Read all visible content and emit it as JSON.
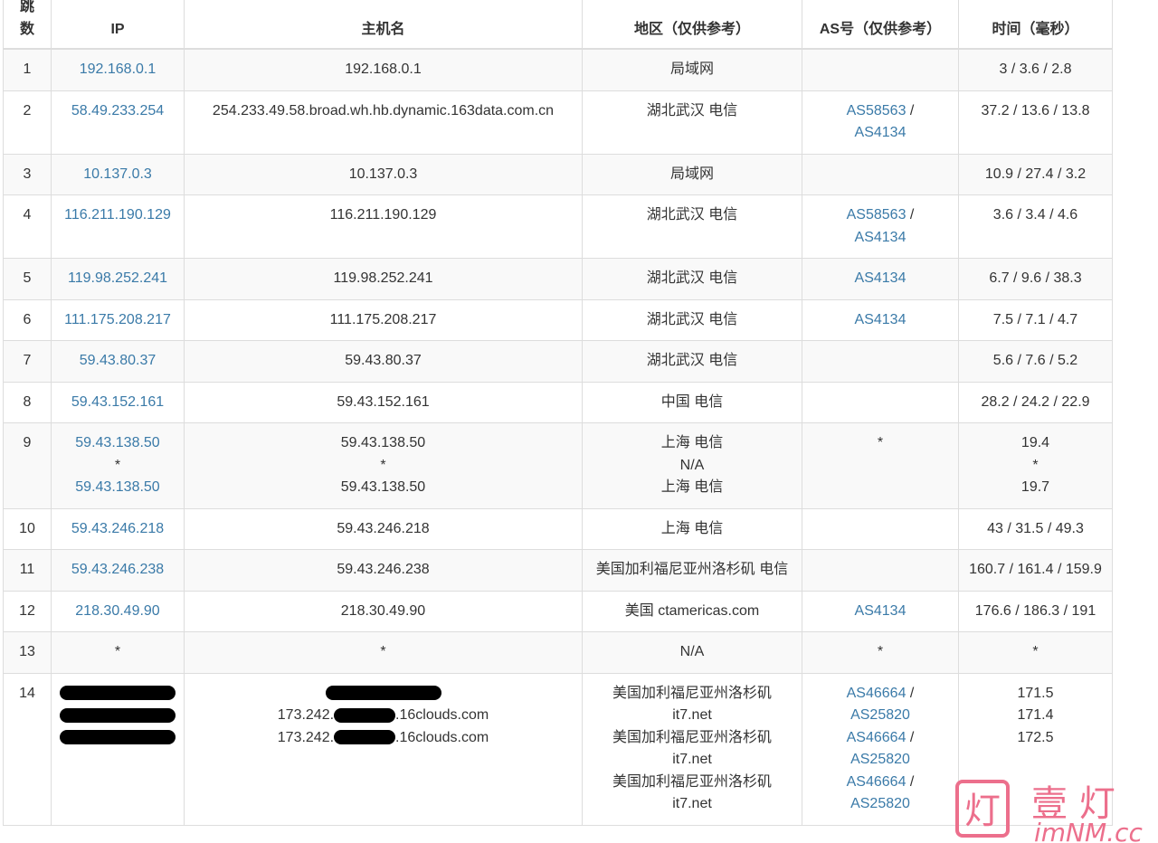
{
  "headers": [
    "跳数",
    "IP",
    "主机名",
    "地区（仅供参考）",
    "AS号（仅供参考）",
    "时间（毫秒）"
  ],
  "rows": [
    {
      "hop": "1",
      "ip": [
        "192.168.0.1"
      ],
      "host": [
        "192.168.0.1"
      ],
      "region": [
        "局域网"
      ],
      "as": [],
      "time": [
        "3 / 3.6 / 2.8"
      ]
    },
    {
      "hop": "2",
      "ip": [
        "58.49.233.254"
      ],
      "host": [
        "254.233.49.58.broad.wh.hb.dynamic.163data.com.cn"
      ],
      "region": [
        "湖北武汉 电信"
      ],
      "as": [
        [
          "AS58563",
          " /"
        ],
        [
          "AS4134",
          ""
        ]
      ],
      "time": [
        "37.2 / 13.6 / 13.8"
      ]
    },
    {
      "hop": "3",
      "ip": [
        "10.137.0.3"
      ],
      "host": [
        "10.137.0.3"
      ],
      "region": [
        "局域网"
      ],
      "as": [],
      "time": [
        "10.9 / 27.4 / 3.2"
      ]
    },
    {
      "hop": "4",
      "ip": [
        "116.211.190.129"
      ],
      "host": [
        "116.211.190.129"
      ],
      "region": [
        "湖北武汉 电信"
      ],
      "as": [
        [
          "AS58563",
          " /"
        ],
        [
          "AS4134",
          ""
        ]
      ],
      "time": [
        "3.6 / 3.4 / 4.6"
      ]
    },
    {
      "hop": "5",
      "ip": [
        "119.98.252.241"
      ],
      "host": [
        "119.98.252.241"
      ],
      "region": [
        "湖北武汉 电信"
      ],
      "as": [
        [
          "AS4134",
          ""
        ]
      ],
      "time": [
        "6.7 / 9.6 / 38.3"
      ]
    },
    {
      "hop": "6",
      "ip": [
        "111.175.208.217"
      ],
      "host": [
        "111.175.208.217"
      ],
      "region": [
        "湖北武汉 电信"
      ],
      "as": [
        [
          "AS4134",
          ""
        ]
      ],
      "time": [
        "7.5 / 7.1 / 4.7"
      ]
    },
    {
      "hop": "7",
      "ip": [
        "59.43.80.37"
      ],
      "host": [
        "59.43.80.37"
      ],
      "region": [
        "湖北武汉 电信"
      ],
      "as": [],
      "time": [
        "5.6 / 7.6 / 5.2"
      ]
    },
    {
      "hop": "8",
      "ip": [
        "59.43.152.161"
      ],
      "host": [
        "59.43.152.161"
      ],
      "region": [
        "中国 电信"
      ],
      "as": [],
      "time": [
        "28.2 / 24.2 / 22.9"
      ]
    },
    {
      "hop": "9",
      "ip": [
        "59.43.138.50",
        "*",
        "59.43.138.50"
      ],
      "host": [
        "59.43.138.50",
        "*",
        "59.43.138.50"
      ],
      "region": [
        "上海 电信",
        "N/A",
        "上海 电信"
      ],
      "as": [
        [
          "*",
          ""
        ]
      ],
      "time": [
        "19.4",
        "*",
        "19.7"
      ]
    },
    {
      "hop": "10",
      "ip": [
        "59.43.246.218"
      ],
      "host": [
        "59.43.246.218"
      ],
      "region": [
        "上海 电信"
      ],
      "as": [],
      "time": [
        "43 / 31.5 / 49.3"
      ]
    },
    {
      "hop": "11",
      "ip": [
        "59.43.246.238"
      ],
      "host": [
        "59.43.246.238"
      ],
      "region": [
        "美国加利福尼亚州洛杉矶 电信"
      ],
      "as": [],
      "time": [
        "160.7 / 161.4 / 159.9"
      ]
    },
    {
      "hop": "12",
      "ip": [
        "218.30.49.90"
      ],
      "host": [
        "218.30.49.90"
      ],
      "region": [
        "美国 ctamericas.com"
      ],
      "as": [
        [
          "AS4134",
          ""
        ]
      ],
      "time": [
        "176.6 / 186.3 / 191"
      ]
    },
    {
      "hop": "13",
      "ip": [
        "*"
      ],
      "host": [
        "*"
      ],
      "region": [
        "N/A"
      ],
      "as": [
        [
          "*",
          ""
        ]
      ],
      "time": [
        "*"
      ]
    },
    {
      "hop": "14",
      "ip": [
        "[redacted]",
        "[redacted]",
        "[redacted]"
      ],
      "host": [
        "[redacted]",
        "173.242.[redacted].16clouds.com",
        "173.242.[redacted].16clouds.com"
      ],
      "region": [
        "美国加利福尼亚州洛杉矶",
        "it7.net",
        "美国加利福尼亚州洛杉矶",
        "it7.net",
        "美国加利福尼亚州洛杉矶",
        "it7.net"
      ],
      "as": [
        [
          "AS46664",
          " /"
        ],
        [
          "AS25820",
          ""
        ],
        [
          "AS46664",
          " /"
        ],
        [
          "AS25820",
          ""
        ],
        [
          "AS46664",
          " /"
        ],
        [
          "AS25820",
          ""
        ]
      ],
      "time": [
        "171.5",
        "171.4",
        "172.5"
      ]
    }
  ],
  "watermark": {
    "text": "壹灯 imNM.cc",
    "color": "#ec6f8c"
  }
}
